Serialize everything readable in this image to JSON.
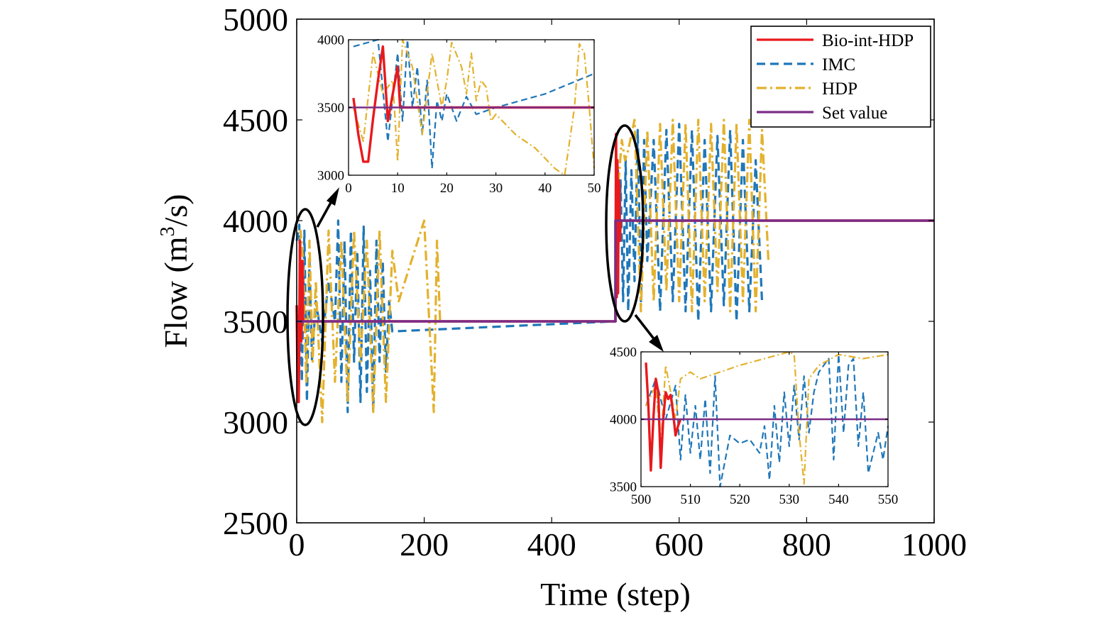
{
  "chart_data": [
    {
      "id": "main",
      "type": "line",
      "xlabel": "Time (step)",
      "ylabel_main": "Flow (m",
      "ylabel_sup": "3",
      "ylabel_tail": "/s)",
      "xlim": [
        0,
        1000
      ],
      "ylim": [
        2500,
        5000
      ],
      "xticks": [
        0,
        200,
        400,
        600,
        800,
        1000
      ],
      "yticks": [
        2500,
        3000,
        3500,
        4000,
        4500,
        5000
      ],
      "setpoint": {
        "x": [
          0,
          500,
          500,
          1000
        ],
        "y": [
          3500,
          3500,
          4000,
          4000
        ]
      },
      "series": [
        {
          "name": "Bio-int-HDP",
          "color": "#e8191d",
          "dash": "",
          "x": [
            0,
            1,
            2,
            3,
            4,
            5,
            6,
            7,
            8,
            9,
            10,
            11,
            500,
            501,
            502,
            503,
            504,
            505,
            506,
            507,
            508,
            1000
          ],
          "y": [
            3580,
            3300,
            3100,
            3100,
            3420,
            3900,
            3600,
            3400,
            3500,
            3800,
            3500,
            3500,
            3500,
            4430,
            3620,
            4300,
            3640,
            4200,
            4180,
            3900,
            4000,
            4000
          ]
        },
        {
          "name": "IMC",
          "color": "#1f77b8",
          "dash": "12 7",
          "x": [
            0,
            4,
            8,
            12,
            16,
            20,
            24,
            30,
            40,
            50,
            60,
            65,
            70,
            75,
            80,
            85,
            90,
            95,
            100,
            105,
            110,
            115,
            120,
            125,
            130,
            135,
            140,
            145,
            150,
            500,
            502,
            504,
            506,
            508,
            512,
            516,
            520,
            525,
            530,
            535,
            540,
            545,
            550,
            560,
            570,
            580,
            590,
            600,
            610,
            620,
            630,
            640,
            650,
            660,
            670,
            680,
            690,
            700,
            710,
            720,
            730
          ],
          "y": [
            3900,
            3980,
            3200,
            3950,
            3100,
            3800,
            3300,
            3600,
            3400,
            3700,
            3500,
            4000,
            3200,
            3900,
            3050,
            3950,
            3300,
            3850,
            3100,
            3970,
            3150,
            3750,
            3050,
            3900,
            3300,
            3800,
            3250,
            3600,
            3450,
            3500,
            4150,
            4250,
            3900,
            4200,
            3600,
            4300,
            3550,
            4250,
            3700,
            4450,
            3600,
            4400,
            3800,
            4400,
            3550,
            4450,
            3600,
            4480,
            3550,
            4450,
            3500,
            4400,
            3550,
            4420,
            3580,
            4450,
            3500,
            4400,
            3550,
            4300,
            3600
          ]
        },
        {
          "name": "HDP",
          "color": "#e3b12d",
          "dash": "14 5 3 5",
          "x": [
            0,
            3,
            6,
            10,
            15,
            20,
            25,
            30,
            40,
            50,
            60,
            70,
            80,
            90,
            100,
            110,
            120,
            130,
            140,
            150,
            160,
            180,
            200,
            215,
            220,
            225,
            500,
            505,
            510,
            515,
            520,
            530,
            540,
            550,
            560,
            570,
            580,
            590,
            600,
            610,
            620,
            630,
            640,
            650,
            660,
            670,
            680,
            690,
            700,
            710,
            720,
            730,
            740
          ],
          "y": [
            3500,
            3100,
            3950,
            3800,
            3200,
            3900,
            3300,
            3700,
            3000,
            3950,
            3200,
            3900,
            3100,
            3950,
            3300,
            3900,
            3050,
            3950,
            3100,
            3850,
            3600,
            3800,
            4000,
            3050,
            3900,
            3500,
            3500,
            4200,
            4400,
            4300,
            4350,
            4500,
            3550,
            4450,
            3600,
            4480,
            3650,
            4500,
            3600,
            4480,
            3550,
            4500,
            3600,
            4480,
            3650,
            4500,
            3550,
            4480,
            3600,
            4500,
            3550,
            4450,
            3800
          ]
        },
        {
          "name": "Set value",
          "color": "#7b2d86",
          "dash": "",
          "x": [
            0,
            500,
            500,
            1000
          ],
          "y": [
            3500,
            3500,
            4000,
            4000
          ]
        }
      ],
      "legend": {
        "position": "top-right"
      }
    },
    {
      "id": "inset1",
      "type": "line",
      "xlim": [
        0,
        50
      ],
      "ylim": [
        3000,
        4000
      ],
      "xticks": [
        0,
        10,
        20,
        30,
        40,
        50
      ],
      "yticks": [
        3000,
        3500,
        4000
      ],
      "setpoint": {
        "x": [
          0,
          50
        ],
        "y": [
          3500,
          3500
        ]
      },
      "series": [
        {
          "name": "Bio-int-HDP",
          "color": "#e8191d",
          "dash": "",
          "x": [
            1,
            2,
            3,
            4,
            5,
            6,
            7,
            8,
            9,
            10,
            10.5,
            11,
            50
          ],
          "y": [
            3570,
            3300,
            3100,
            3100,
            3420,
            3700,
            3950,
            3400,
            3600,
            3800,
            3500,
            3500,
            3500
          ]
        },
        {
          "name": "IMC",
          "color": "#1f77b8",
          "dash": "9 5",
          "x": [
            1,
            6,
            8,
            10,
            11,
            12,
            13,
            14,
            15,
            16,
            17,
            18,
            19,
            20,
            22,
            24,
            26,
            30,
            40,
            50
          ],
          "y": [
            3950,
            4000,
            3250,
            3900,
            3400,
            4000,
            3500,
            3800,
            3300,
            3700,
            3050,
            3550,
            3400,
            3600,
            3400,
            3580,
            3450,
            3500,
            3600,
            3750
          ]
        },
        {
          "name": "HDP",
          "color": "#e3b12d",
          "dash": "10 4 2 4",
          "x": [
            1,
            3,
            5,
            7,
            9,
            10,
            11,
            13,
            15,
            17,
            19,
            20,
            21,
            23,
            24,
            25,
            26,
            27,
            28,
            29,
            30,
            34,
            38,
            42,
            44,
            46,
            47,
            48,
            49,
            50
          ],
          "y": [
            3500,
            3250,
            3900,
            3600,
            3700,
            3100,
            4000,
            3800,
            3300,
            3900,
            3500,
            3700,
            3980,
            3800,
            3600,
            3900,
            3550,
            3700,
            3650,
            3400,
            3450,
            3300,
            3200,
            3050,
            3000,
            3500,
            3970,
            3900,
            3500,
            3050
          ]
        },
        {
          "name": "Set value",
          "color": "#7b2d86",
          "dash": "",
          "x": [
            0,
            50
          ],
          "y": [
            3500,
            3500
          ]
        }
      ]
    },
    {
      "id": "inset2",
      "type": "line",
      "xlim": [
        500,
        550
      ],
      "ylim": [
        3500,
        4500
      ],
      "xticks": [
        500,
        510,
        520,
        530,
        540,
        550
      ],
      "yticks": [
        3500,
        4000,
        4500
      ],
      "setpoint": {
        "x": [
          500,
          550
        ],
        "y": [
          4000,
          4000
        ]
      },
      "series": [
        {
          "name": "Bio-int-HDP",
          "color": "#e8191d",
          "dash": "",
          "x": [
            501,
            501.5,
            502,
            502.5,
            503,
            503.5,
            504,
            504.5,
            505,
            505.5,
            506,
            506.5,
            507,
            507.5,
            508
          ],
          "y": [
            4420,
            4100,
            3620,
            4000,
            4300,
            4200,
            3640,
            4000,
            4200,
            4150,
            4180,
            4050,
            3880,
            3950,
            4000
          ]
        },
        {
          "name": "IMC",
          "color": "#1f77b8",
          "dash": "9 5",
          "x": [
            501,
            503,
            505,
            507,
            508,
            509,
            510,
            511,
            512,
            513,
            514,
            515,
            516,
            518,
            520,
            522,
            524,
            525,
            526,
            527,
            528,
            529,
            530,
            531,
            532,
            533,
            534,
            535,
            536,
            537,
            538,
            539,
            540,
            541,
            542,
            543,
            544,
            545,
            546,
            547,
            548,
            549,
            550
          ],
          "y": [
            4100,
            4300,
            4000,
            4250,
            3700,
            4180,
            3750,
            4100,
            3700,
            4150,
            3600,
            4320,
            3500,
            3880,
            3820,
            3850,
            3750,
            3950,
            3550,
            4100,
            3680,
            4200,
            3800,
            4250,
            3850,
            4320,
            3900,
            4200,
            4350,
            4400,
            4450,
            3700,
            4480,
            3900,
            4400,
            4450,
            3800,
            4200,
            3600,
            3750,
            3900,
            3700,
            3950
          ]
        },
        {
          "name": "HDP",
          "color": "#e3b12d",
          "dash": "10 4 2 4",
          "x": [
            501,
            503,
            504,
            505,
            506,
            507,
            508,
            510,
            512,
            520,
            530,
            531,
            532,
            533,
            534,
            536,
            540,
            545,
            550
          ],
          "y": [
            4100,
            4250,
            3800,
            4400,
            4200,
            4000,
            4300,
            4350,
            4300,
            4400,
            4500,
            4480,
            3900,
            3520,
            4300,
            4400,
            4480,
            4450,
            4480
          ]
        },
        {
          "name": "Set value",
          "color": "#7b2d86",
          "dash": "",
          "x": [
            500,
            550
          ],
          "y": [
            4000,
            4000
          ]
        }
      ]
    }
  ]
}
